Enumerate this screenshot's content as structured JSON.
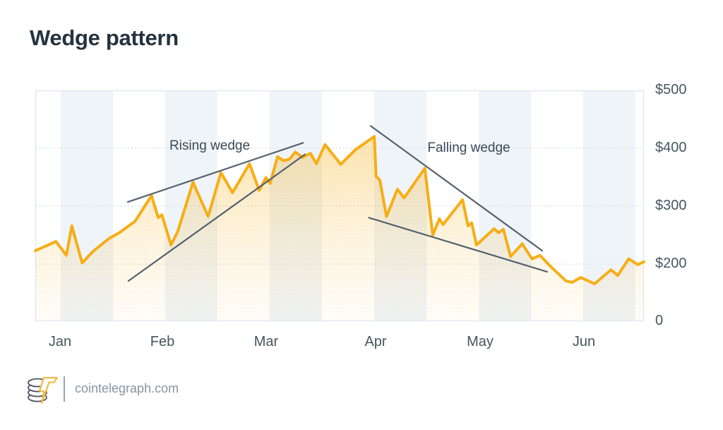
{
  "header": {
    "title": "Wedge pattern"
  },
  "footer": {
    "site": "cointelegraph.com",
    "logo_icon": "cointelegraph-coins-bolt"
  },
  "colors": {
    "line": "#F6AE17",
    "trendline": "#55626F",
    "band": "#EFF4F8",
    "grid": "#C9DBE7",
    "frame": "#DCE6ED",
    "title_text": "#24333E",
    "axis_text": "#46565F",
    "annotation_text": "#3A4A55",
    "footer_text": "#8795A0",
    "logo_gray": "#4A5560",
    "logo_yellow": "#F0BA40"
  },
  "chart_data": {
    "type": "area",
    "title": "Wedge pattern",
    "xlabel": "",
    "ylabel": "",
    "ylim": [
      0,
      500
    ],
    "grid": "horizontal-dotted",
    "legend": "none",
    "y_scale_note": "piecewise: segment 0-200 is compressed to the same height as each 100 step above 200",
    "x_ticks": [
      {
        "label": "Jan",
        "pct": 4.1
      },
      {
        "label": "Feb",
        "pct": 20.9
      },
      {
        "label": "Mar",
        "pct": 37.9
      },
      {
        "label": "Apr",
        "pct": 55.9
      },
      {
        "label": "May",
        "pct": 73.1
      },
      {
        "label": "Jun",
        "pct": 90.1
      }
    ],
    "y_ticks": [
      {
        "label": "$500",
        "value": 500
      },
      {
        "label": "$400",
        "value": 400
      },
      {
        "label": "$300",
        "value": 300
      },
      {
        "label": "$200",
        "value": 200
      },
      {
        "label": "0",
        "value": 0
      }
    ],
    "shaded_bands": {
      "starts_pct": [
        4.2,
        21.3,
        38.5,
        55.7,
        72.9,
        90.0
      ],
      "width_pct": 8.6
    },
    "series": [
      {
        "name": "price",
        "color": "#F6AE17",
        "points": [
          [
            0,
            223
          ],
          [
            3.4,
            239
          ],
          [
            5.1,
            215
          ],
          [
            6,
            266
          ],
          [
            7.7,
            202
          ],
          [
            9.4,
            221
          ],
          [
            12.1,
            244
          ],
          [
            13.8,
            254
          ],
          [
            16.4,
            274
          ],
          [
            19.1,
            318
          ],
          [
            20.2,
            280
          ],
          [
            20.8,
            285
          ],
          [
            22.3,
            233
          ],
          [
            23.4,
            256
          ],
          [
            25.9,
            341
          ],
          [
            28.4,
            282
          ],
          [
            30.5,
            358
          ],
          [
            32.4,
            323
          ],
          [
            35.2,
            373
          ],
          [
            36.8,
            327
          ],
          [
            37.9,
            349
          ],
          [
            38.6,
            339
          ],
          [
            39.8,
            385
          ],
          [
            40.8,
            378
          ],
          [
            41.8,
            381
          ],
          [
            42.7,
            393
          ],
          [
            43.9,
            384
          ],
          [
            45.2,
            391
          ],
          [
            46.2,
            373
          ],
          [
            47.6,
            406
          ],
          [
            50.2,
            372
          ],
          [
            52.6,
            397
          ],
          [
            55.7,
            420
          ],
          [
            56,
            351
          ],
          [
            56.6,
            345
          ],
          [
            57.7,
            282
          ],
          [
            59.5,
            329
          ],
          [
            60.6,
            314
          ],
          [
            64,
            365
          ],
          [
            65.3,
            250
          ],
          [
            66.4,
            278
          ],
          [
            67,
            268
          ],
          [
            70.2,
            311
          ],
          [
            71.1,
            266
          ],
          [
            71.7,
            271
          ],
          [
            72.5,
            233
          ],
          [
            75.4,
            261
          ],
          [
            76.1,
            254
          ],
          [
            76.9,
            260
          ],
          [
            78.1,
            213
          ],
          [
            80,
            235
          ],
          [
            81.6,
            209
          ],
          [
            82.9,
            215
          ],
          [
            85,
            185
          ],
          [
            87.2,
            141
          ],
          [
            88.2,
            136
          ],
          [
            89.6,
            153
          ],
          [
            91.9,
            131
          ],
          [
            94.6,
            180
          ],
          [
            95.7,
            160
          ],
          [
            97.5,
            209
          ],
          [
            99,
            198
          ],
          [
            100,
            204
          ]
        ]
      }
    ],
    "trendlines": [
      {
        "name": "rising-wedge-upper",
        "from": [
          15.2,
          307
        ],
        "to": [
          44.0,
          409
        ]
      },
      {
        "name": "rising-wedge-lower",
        "from": [
          15.3,
          141
        ],
        "to": [
          44.3,
          389
        ]
      },
      {
        "name": "falling-wedge-upper",
        "from": [
          55.1,
          438
        ],
        "to": [
          83.3,
          223
        ]
      },
      {
        "name": "falling-wedge-lower",
        "from": [
          54.8,
          280
        ],
        "to": [
          84.1,
          173
        ]
      }
    ],
    "annotations": [
      {
        "label": "Rising wedge",
        "x_pct": 28.6,
        "value": 403
      },
      {
        "label": "Falling wedge",
        "x_pct": 71.2,
        "value": 400
      }
    ]
  }
}
